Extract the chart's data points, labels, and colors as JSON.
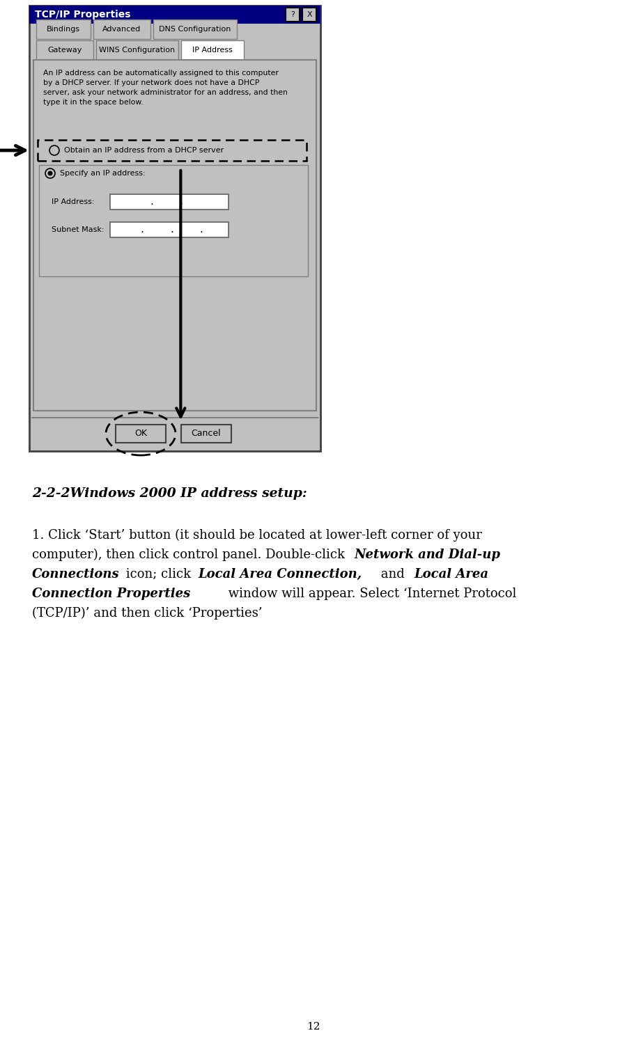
{
  "bg_color": "#ffffff",
  "fig_width": 9.0,
  "fig_height": 14.94,
  "dialog": {
    "title": "TCP/IP Properties",
    "title_bg": "#000080",
    "title_fg": "#ffffff",
    "bg": "#c0c0c0"
  },
  "heading": "2-2-2Windows 2000 IP address setup:",
  "page_number": "12"
}
